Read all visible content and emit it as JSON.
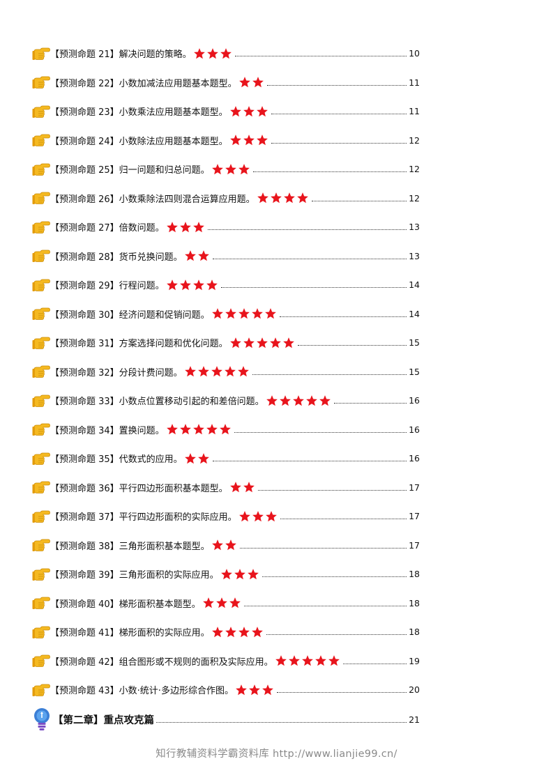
{
  "toc": {
    "items": [
      {
        "label": "【预测命题 21】解决问题的策略。",
        "stars": 3,
        "page": "10"
      },
      {
        "label": "【预测命题 22】小数加减法应用题基本题型。",
        "stars": 2,
        "page": "11"
      },
      {
        "label": "【预测命题 23】小数乘法应用题基本题型。",
        "stars": 3,
        "page": "11"
      },
      {
        "label": "【预测命题 24】小数除法应用题基本题型。",
        "stars": 3,
        "page": "12"
      },
      {
        "label": "【预测命题 25】归一问题和归总问题。",
        "stars": 3,
        "page": "12"
      },
      {
        "label": "【预测命题 26】小数乘除法四则混合运算应用题。",
        "stars": 4,
        "page": "12"
      },
      {
        "label": "【预测命题 27】倍数问题。",
        "stars": 3,
        "page": "13"
      },
      {
        "label": "【预测命题 28】货币兑换问题。",
        "stars": 2,
        "page": "13"
      },
      {
        "label": "【预测命题 29】行程问题。",
        "stars": 4,
        "page": "14"
      },
      {
        "label": "【预测命题 30】经济问题和促销问题。",
        "stars": 5,
        "page": "14"
      },
      {
        "label": "【预测命题 31】方案选择问题和优化问题。",
        "stars": 5,
        "page": "15"
      },
      {
        "label": "【预测命题 32】分段计费问题。",
        "stars": 5,
        "page": "15"
      },
      {
        "label": "【预测命题 33】小数点位置移动引起的和差倍问题。",
        "stars": 5,
        "page": "16"
      },
      {
        "label": "【预测命题 34】置换问题。",
        "stars": 5,
        "page": "16"
      },
      {
        "label": "【预测命题 35】代数式的应用。",
        "stars": 2,
        "page": "16"
      },
      {
        "label": "【预测命题 36】平行四边形面积基本题型。",
        "stars": 2,
        "page": "17"
      },
      {
        "label": "【预测命题 37】平行四边形面积的实际应用。",
        "stars": 3,
        "page": "17"
      },
      {
        "label": "【预测命题 38】三角形面积基本题型。",
        "stars": 2,
        "page": "17"
      },
      {
        "label": "【预测命题 39】三角形面积的实际应用。",
        "stars": 3,
        "page": "18"
      },
      {
        "label": "【预测命题 40】梯形面积基本题型。",
        "stars": 3,
        "page": "18"
      },
      {
        "label": "【预测命题 41】梯形面积的实际应用。",
        "stars": 4,
        "page": "18"
      },
      {
        "label": "【预测命题 42】组合图形或不规则的面积及实际应用。",
        "stars": 5,
        "page": "19"
      },
      {
        "label": "【预测命题 43】小数·统计·多边形综合作图。",
        "stars": 3,
        "page": "20"
      }
    ],
    "chapter": {
      "label": "【第二章】重点攻克篇",
      "page": "21"
    }
  },
  "icons": {
    "item_icon": "pointing-hand-icon",
    "chapter_icon": "lightbulb-icon"
  },
  "colors": {
    "star": "#e8141c",
    "hand": "#f5b921"
  },
  "footer": {
    "text": "知行教辅资料学霸资料库 http://www.lianjie99.cn/"
  }
}
